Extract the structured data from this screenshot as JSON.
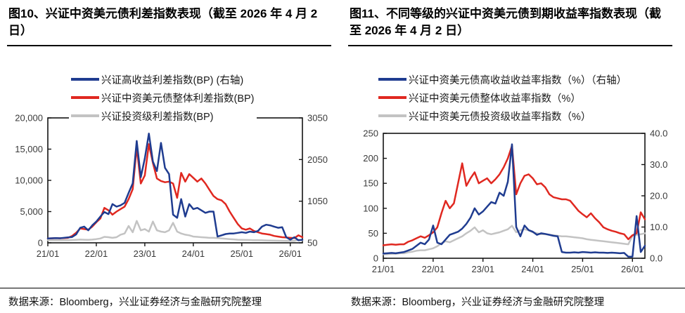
{
  "panels": [
    {
      "title": "图10、兴证中资美元债利差指数表现（截至 2026 年 4 月 2 日）",
      "legend": [
        {
          "label": "兴证高收益利差指数(BP) (右轴)",
          "color_key": "navy"
        },
        {
          "label": "兴证中资美元债整体利差指数(BP)",
          "color_key": "red"
        },
        {
          "label": "兴证投资级利差指数(BP)",
          "color_key": "gray"
        }
      ],
      "footer": "数据来源：Bloomberg，兴业证券经济与金融研究院整理"
    },
    {
      "title": "图11、不同等级的兴证中资美元债到期收益率指数表现（截至 2026 年 4 月 2 日）",
      "legend": [
        {
          "label": "兴证中资美元债高收益收益率指数（%）（右轴）",
          "color_key": "navy"
        },
        {
          "label": "兴证中资美元债整体收益率指数（%）",
          "color_key": "red"
        },
        {
          "label": "兴证中资美元债投资级收益率指数（%）",
          "color_key": "gray"
        }
      ],
      "footer": "数据来源：Bloomberg，兴业证券经济与金融研究院整理"
    }
  ],
  "colors": {
    "navy": "#1f3c90",
    "red": "#e02820",
    "gray": "#c3c3c3"
  },
  "chart_data": [
    {
      "type": "line",
      "title": "兴证中资美元债利差指数表现（截至 2026 年 4 月 2 日）",
      "x_start": "2021-01",
      "x_end": "2026-04",
      "x_freq": "monthly",
      "x_tick_indices": [
        0,
        12,
        24,
        36,
        48,
        60
      ],
      "x_tick_labels": [
        "21/01",
        "22/01",
        "23/01",
        "24/01",
        "25/01",
        "26/01"
      ],
      "y_left": {
        "min": 0,
        "max": 20000,
        "ticks": [
          0,
          5000,
          10000,
          15000,
          20000
        ],
        "tick_labels": [
          "0",
          "5,000",
          "10,000",
          "15,000",
          "20,000"
        ],
        "unit": "BP"
      },
      "y_right": {
        "min": 50,
        "max": 3050,
        "ticks": [
          50,
          1050,
          2050,
          3050
        ],
        "tick_labels": [
          "50",
          "1050",
          "2050",
          "3050"
        ],
        "unit": "BP"
      },
      "grid": false,
      "legend_position": "top-left",
      "series": [
        {
          "name": "兴证高收益利差指数(BP) (右轴)",
          "axis": "right",
          "color": "#1f3c90",
          "z": 3,
          "values": [
            155,
            160,
            165,
            160,
            170,
            180,
            190,
            250,
            410,
            440,
            350,
            470,
            560,
            680,
            790,
            740,
            980,
            920,
            950,
            1010,
            1250,
            1480,
            2495,
            1625,
            2075,
            2675,
            2000,
            1775,
            2450,
            1850,
            1700,
            725,
            650,
            1100,
            680,
            980,
            860,
            890,
            830,
            770,
            800,
            800,
            200,
            230,
            260,
            275,
            275,
            290,
            305,
            290,
            320,
            305,
            335,
            440,
            485,
            470,
            440,
            410,
            425,
            185,
            125,
            185,
            110,
            125
          ]
        },
        {
          "name": "兴证中资美元债整体利差指数(BP)",
          "axis": "left",
          "color": "#e02820",
          "z": 2,
          "values": [
            700,
            720,
            750,
            730,
            760,
            800,
            1100,
            1600,
            2300,
            2200,
            2100,
            2600,
            3300,
            3900,
            5600,
            5200,
            4500,
            5000,
            5400,
            5800,
            7000,
            8600,
            15300,
            9500,
            10800,
            15800,
            12800,
            10300,
            9900,
            9700,
            9800,
            9500,
            7200,
            11200,
            9800,
            11000,
            10400,
            9800,
            10300,
            9500,
            8500,
            7500,
            7000,
            6800,
            6200,
            5000,
            4000,
            3000,
            2300,
            2100,
            2300,
            1900,
            1700,
            1500,
            1400,
            1300,
            1100,
            1000,
            900,
            850,
            800,
            750,
            1200,
            900
          ]
        },
        {
          "name": "兴证投资级利差指数(BP)",
          "axis": "left",
          "color": "#c3c3c3",
          "z": 1,
          "values": [
            400,
            400,
            420,
            400,
            420,
            430,
            450,
            480,
            520,
            500,
            480,
            520,
            600,
            700,
            950,
            900,
            800,
            900,
            1300,
            1500,
            2700,
            1700,
            3500,
            2000,
            2200,
            1800,
            3400,
            2000,
            1800,
            1700,
            2000,
            3200,
            1800,
            1500,
            1300,
            1200,
            1000,
            950,
            900,
            850,
            800,
            800,
            750,
            700,
            650,
            600,
            550,
            500,
            480,
            460,
            450,
            430,
            420,
            400,
            380,
            360,
            350,
            340,
            330,
            320,
            310,
            300,
            500,
            400
          ]
        }
      ]
    },
    {
      "type": "line",
      "title": "不同等级的兴证中资美元债到期收益率指数表现（截至 2026 年 4 月 2 日）",
      "x_start": "2021-01",
      "x_end": "2026-04",
      "x_freq": "monthly",
      "x_tick_indices": [
        0,
        12,
        24,
        36,
        48,
        60
      ],
      "x_tick_labels": [
        "21/01",
        "22/01",
        "23/01",
        "24/01",
        "25/01",
        "26/01"
      ],
      "y_left": {
        "min": 0,
        "max": 250,
        "ticks": [
          0,
          50,
          100,
          150,
          200,
          250
        ],
        "tick_labels": [
          "0",
          "50",
          "100",
          "150",
          "200",
          "250"
        ],
        "unit": "%"
      },
      "y_right": {
        "min": 0,
        "max": 40,
        "ticks": [
          0,
          10,
          20,
          30,
          40
        ],
        "tick_labels": [
          "0.0",
          "10.0",
          "20.0",
          "30.0",
          "40.0"
        ],
        "unit": "%"
      },
      "grid": false,
      "legend_position": "top-left",
      "series": [
        {
          "name": "兴证中资美元债高收益收益率指数（%）（右轴）",
          "axis": "right",
          "color": "#1f3c90",
          "z": 3,
          "values": [
            1.5,
            1.6,
            1.7,
            1.6,
            1.8,
            2.0,
            2.5,
            3.0,
            4.0,
            5.0,
            4.5,
            6.0,
            10.5,
            5.0,
            4.5,
            6.0,
            7.5,
            8.0,
            8.5,
            9.5,
            11.0,
            13.0,
            16.0,
            14.0,
            15.0,
            16.5,
            18.0,
            17.5,
            21.0,
            20.0,
            24.5,
            36.5,
            10.0,
            7.0,
            10.5,
            9.0,
            8.5,
            7.5,
            8.0,
            7.8,
            7.5,
            7.2,
            7.0,
            2.0,
            1.8,
            1.8,
            1.9,
            1.8,
            2.0,
            1.9,
            1.8,
            1.9,
            1.8,
            1.8,
            1.7,
            1.8,
            1.7,
            1.6,
            1.7,
            0.5,
            0.5,
            13.5,
            2.0,
            4.0
          ]
        },
        {
          "name": "兴证中资美元债整体收益率指数（%）",
          "axis": "left",
          "color": "#e02820",
          "z": 2,
          "values": [
            26,
            27,
            28,
            27,
            28,
            28,
            33,
            36,
            40,
            44,
            41,
            46,
            52,
            62,
            90,
            115,
            100,
            110,
            150,
            190,
            145,
            160,
            172,
            150,
            155,
            160,
            150,
            158,
            168,
            182,
            200,
            225,
            128,
            150,
            165,
            168,
            160,
            148,
            150,
            142,
            128,
            122,
            120,
            118,
            118,
            115,
            105,
            95,
            88,
            82,
            90,
            80,
            72,
            62,
            58,
            55,
            53,
            50,
            48,
            38,
            46,
            50,
            92,
            78
          ]
        },
        {
          "name": "兴证中资美元债投资级收益率指数（%）",
          "axis": "left",
          "color": "#c3c3c3",
          "z": 1,
          "values": [
            8,
            8,
            9,
            9,
            10,
            10,
            12,
            13,
            15,
            16,
            16,
            18,
            20,
            24,
            30,
            34,
            32,
            36,
            40,
            44,
            50,
            55,
            62,
            52,
            56,
            50,
            48,
            50,
            52,
            55,
            58,
            65,
            52,
            56,
            58,
            56,
            52,
            50,
            48,
            48,
            47,
            46,
            45,
            44,
            44,
            43,
            42,
            41,
            40,
            38,
            37,
            36,
            35,
            34,
            33,
            32,
            31,
            30,
            29,
            28,
            45,
            47,
            48,
            50
          ]
        }
      ]
    }
  ]
}
